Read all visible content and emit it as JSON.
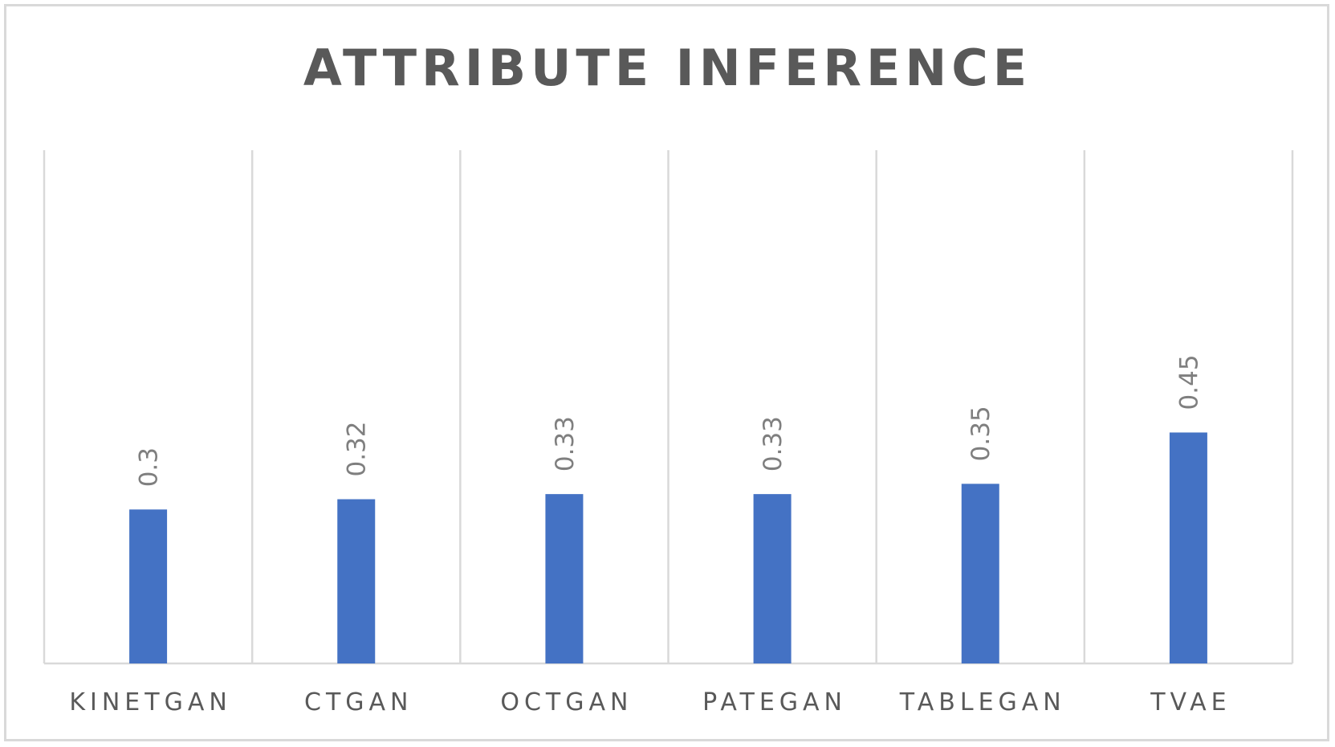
{
  "chart_data": {
    "type": "bar",
    "title": "ATTRIBUTE INFERENCE",
    "categories": [
      "KINETGAN",
      "CTGAN",
      "OCTGAN",
      "PATEGAN",
      "TABLEGAN",
      "TVAE"
    ],
    "values": [
      0.3,
      0.32,
      0.33,
      0.33,
      0.35,
      0.45
    ],
    "data_labels": [
      "0.3",
      "0.32",
      "0.33",
      "0.33",
      "0.35",
      "0.45"
    ],
    "xlabel": "",
    "ylabel": "",
    "ylim": [
      0,
      1
    ],
    "grid": "vertical",
    "legend": "none",
    "bar_color": "#4472C4"
  }
}
